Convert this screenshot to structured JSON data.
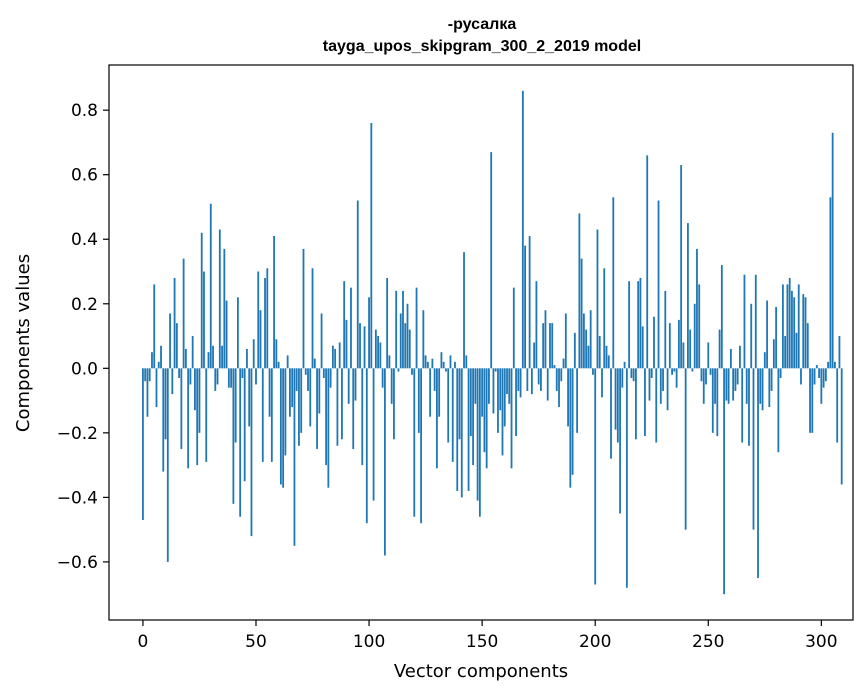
{
  "chart_data": {
    "type": "bar",
    "title": "-русалка",
    "subtitle": "tayga_upos_skipgram_300_2_2019 model",
    "xlabel": "Vector components",
    "ylabel": "Components values",
    "xlim": [
      -15,
      314
    ],
    "ylim": [
      -0.78,
      0.94
    ],
    "xticks": [
      0,
      50,
      100,
      150,
      200,
      250,
      300
    ],
    "xtick_labels": [
      "0",
      "50",
      "100",
      "150",
      "200",
      "250",
      "300"
    ],
    "yticks": [
      -0.6,
      -0.4,
      -0.2,
      0.0,
      0.2,
      0.4,
      0.6,
      0.8
    ],
    "ytick_labels": [
      "−0.6",
      "−0.4",
      "−0.2",
      "0.0",
      "0.2",
      "0.4",
      "0.6",
      "0.8"
    ],
    "grid": false,
    "bar_color": "#1f77b4",
    "values": [
      -0.47,
      -0.04,
      -0.15,
      -0.04,
      0.05,
      0.26,
      -0.12,
      0.02,
      0.07,
      -0.32,
      -0.22,
      -0.6,
      0.17,
      -0.08,
      0.28,
      0.14,
      -0.03,
      -0.25,
      0.34,
      0.06,
      -0.31,
      -0.05,
      0.1,
      -0.13,
      -0.3,
      -0.2,
      0.42,
      0.3,
      -0.29,
      0.05,
      0.51,
      0.07,
      -0.07,
      -0.05,
      0.43,
      0.07,
      0.37,
      0.21,
      -0.06,
      -0.06,
      -0.42,
      -0.23,
      0.22,
      -0.46,
      -0.03,
      -0.35,
      0.06,
      -0.18,
      -0.52,
      0.09,
      -0.05,
      0.3,
      0.18,
      -0.29,
      0.28,
      0.31,
      -0.15,
      -0.29,
      0.41,
      0.09,
      0.02,
      -0.36,
      -0.37,
      -0.27,
      0.04,
      -0.15,
      -0.12,
      -0.55,
      -0.07,
      -0.24,
      -0.2,
      0.37,
      -0.02,
      -0.07,
      -0.18,
      0.31,
      0.03,
      -0.25,
      -0.14,
      0.17,
      -0.03,
      -0.3,
      -0.37,
      -0.06,
      0.07,
      0.06,
      -0.24,
      0.08,
      -0.22,
      0.27,
      0.15,
      -0.11,
      0.25,
      -0.25,
      -0.1,
      0.52,
      0.14,
      -0.3,
      0.13,
      -0.48,
      0.22,
      0.76,
      -0.41,
      0.12,
      0.1,
      0.08,
      -0.06,
      -0.58,
      0.28,
      0.04,
      -0.11,
      -0.22,
      0.24,
      -0.01,
      0.17,
      0.24,
      0.14,
      0.2,
      0.12,
      -0.02,
      -0.46,
      0.25,
      -0.2,
      -0.48,
      0.18,
      0.04,
      0.02,
      -0.15,
      0.03,
      -0.07,
      -0.31,
      -0.15,
      0.05,
      0.02,
      -0.01,
      -0.23,
      0.04,
      -0.29,
      0.02,
      -0.38,
      -0.22,
      -0.4,
      0.36,
      0.04,
      -0.38,
      -0.21,
      -0.3,
      -0.11,
      -0.41,
      -0.46,
      -0.15,
      -0.26,
      -0.31,
      -0.11,
      0.67,
      -0.14,
      -0.01,
      -0.2,
      -0.13,
      -0.27,
      -0.18,
      -0.08,
      -0.11,
      -0.31,
      0.25,
      -0.21,
      -0.07,
      -0.09,
      0.86,
      0.38,
      -0.07,
      0.41,
      -0.08,
      0.08,
      0.27,
      -0.05,
      -0.07,
      0.14,
      0.18,
      -0.1,
      0.14,
      0.14,
      0.01,
      -0.07,
      -0.12,
      -0.04,
      0.03,
      0.17,
      -0.18,
      -0.37,
      -0.33,
      0.11,
      -0.2,
      0.48,
      0.34,
      0.17,
      0.12,
      0.07,
      0.18,
      -0.02,
      -0.67,
      0.43,
      0.1,
      -0.09,
      0.31,
      0.07,
      0.04,
      -0.28,
      0.53,
      -0.19,
      -0.23,
      -0.45,
      -0.06,
      0.02,
      -0.68,
      0.27,
      -0.03,
      -0.04,
      -0.22,
      0.27,
      0.28,
      0.13,
      -0.21,
      0.66,
      -0.1,
      -0.03,
      0.16,
      -0.23,
      0.52,
      -0.11,
      -0.07,
      0.24,
      -0.13,
      0.14,
      -0.02,
      -0.01,
      -0.06,
      0.15,
      0.63,
      0.08,
      -0.5,
      0.45,
      0.12,
      -0.01,
      0.2,
      0.37,
      0.26,
      -0.04,
      -0.11,
      -0.05,
      0.08,
      -0.02,
      -0.2,
      -0.11,
      -0.21,
      0.12,
      0.32,
      -0.7,
      -0.1,
      -0.11,
      0.06,
      -0.1,
      -0.07,
      -0.05,
      0.07,
      -0.23,
      0.29,
      -0.11,
      -0.24,
      0.2,
      -0.5,
      0.29,
      -0.65,
      -0.11,
      -0.13,
      0.05,
      0.21,
      -0.12,
      -0.07,
      0.09,
      0.19,
      -0.26,
      -0.03,
      0.26,
      0.1,
      0.26,
      0.28,
      0.24,
      0.22,
      0.11,
      0.26,
      -0.05,
      0.23,
      0.22,
      0.14,
      -0.2,
      -0.2,
      -0.05,
      0.01,
      -0.03,
      -0.11,
      -0.06,
      -0.04,
      0.02,
      0.53,
      0.73,
      0.02,
      -0.23,
      0.1,
      -0.36
    ]
  }
}
